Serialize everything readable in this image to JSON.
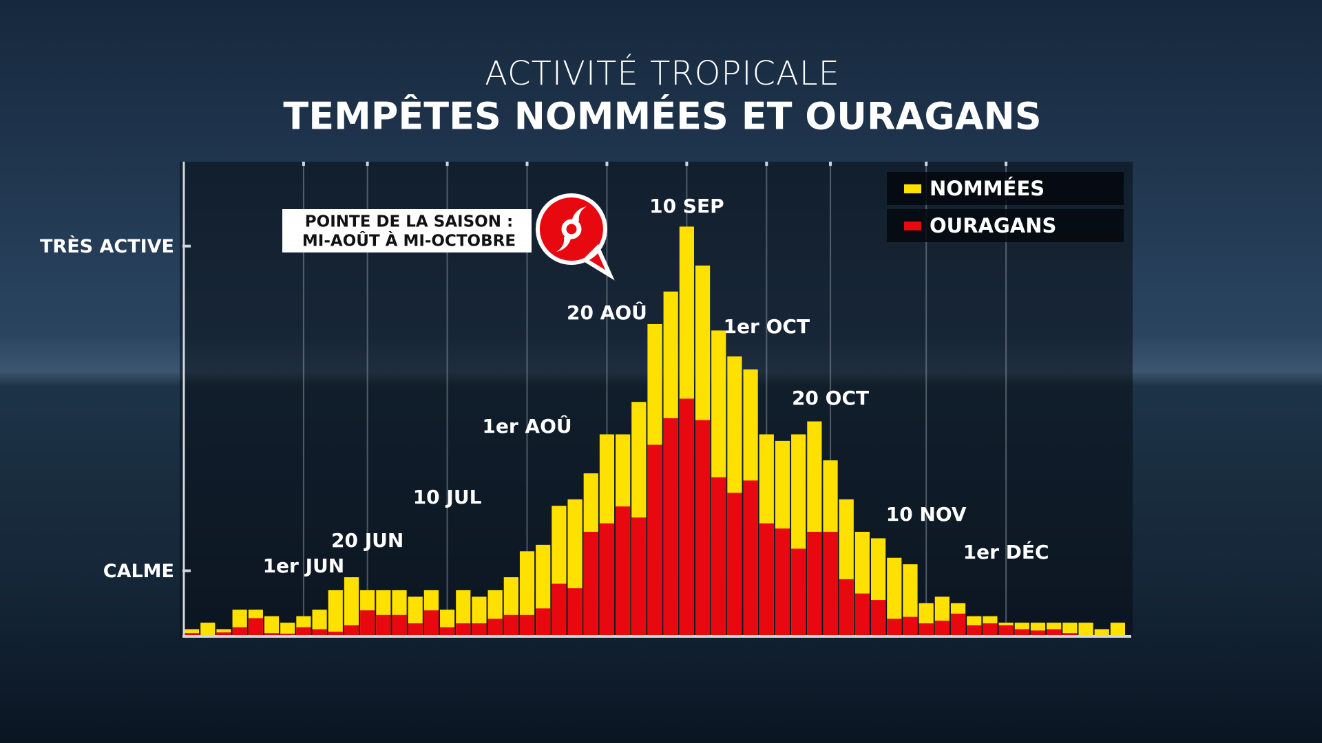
{
  "chart_data": {
    "type": "bar",
    "subtitle": "ACTIVITÉ TROPICALE",
    "title": "TEMPÊTES  NOMMÉES ET OURAGANS",
    "annotation": [
      "POINTE DE LA SAISON :",
      "MI-AOÛT À MI-OCTOBRE"
    ],
    "legend": "top-right",
    "ylim": [
      0,
      73
    ],
    "yticks": [
      {
        "value": 10,
        "label": "CALME"
      },
      {
        "value": 60,
        "label": "TRÈS ACTIVE"
      }
    ],
    "categories": [
      null,
      null,
      null,
      null,
      null,
      null,
      null,
      "1er JUN",
      null,
      null,
      null,
      "20 JUN",
      null,
      null,
      null,
      null,
      "10 JUL",
      null,
      null,
      null,
      null,
      "1er AOÛ",
      null,
      null,
      null,
      null,
      "20 AOÛ",
      null,
      null,
      null,
      null,
      "10 SEP",
      null,
      null,
      null,
      null,
      "1er OCT",
      null,
      null,
      null,
      "20 OCT",
      null,
      null,
      null,
      null,
      null,
      "10 NOV",
      null,
      null,
      null,
      null,
      "1er DÉC",
      null,
      null,
      null,
      null,
      null,
      null,
      null
    ],
    "series": [
      {
        "name": "NOMMÉES",
        "color": "#ffe100",
        "values": [
          1,
          2,
          1,
          4,
          4,
          3,
          2,
          3,
          4,
          7,
          9,
          7,
          7,
          7,
          6,
          7,
          4,
          7,
          6,
          7,
          9,
          13,
          14,
          20,
          21,
          25,
          31,
          31,
          36,
          48,
          53,
          63,
          57,
          47,
          43,
          41,
          31,
          30,
          31,
          33,
          27,
          21,
          16,
          15,
          12,
          11,
          5,
          6,
          5,
          3,
          3,
          2,
          2,
          2,
          2,
          2,
          2,
          1,
          2
        ]
      },
      {
        "name": "OURAGANS",
        "color": "#e8080f",
        "values": [
          0.4,
          0,
          0.5,
          1.3,
          2.7,
          0.4,
          0.3,
          1.3,
          1.0,
          0.6,
          1.6,
          3.9,
          3.2,
          3.2,
          1.9,
          3.9,
          1.3,
          1.9,
          1.9,
          2.6,
          3.2,
          3.2,
          4.2,
          8.0,
          7.3,
          16.0,
          17.3,
          19.9,
          18.2,
          29.4,
          33.5,
          36.5,
          33.2,
          24.4,
          22.0,
          23.9,
          17.3,
          16.5,
          13.4,
          16.0,
          16.0,
          8.7,
          6.5,
          5.5,
          2.6,
          2.9,
          1.9,
          2.3,
          3.4,
          1.6,
          1.9,
          1.6,
          1.0,
          0.8,
          1.0,
          0.4,
          0,
          0,
          0
        ]
      }
    ]
  }
}
